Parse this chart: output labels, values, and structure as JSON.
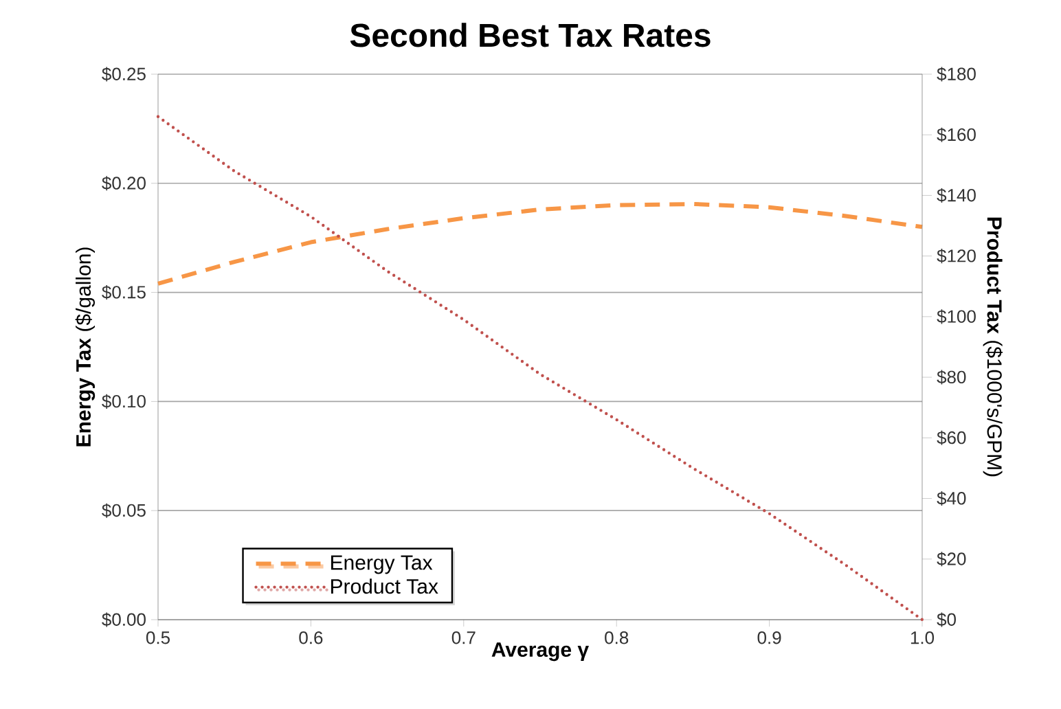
{
  "chart_data": {
    "type": "line",
    "title": "Second Best Tax Rates",
    "xlabel": "Average γ",
    "ylabel": "**Energy Tax** ($/gallon)",
    "y2label": "**Product Tax** ($1000's/GPM)",
    "xlim": [
      0.5,
      1.0
    ],
    "ylim": [
      0,
      0.25
    ],
    "y2lim": [
      0,
      180
    ],
    "xticks": [
      {
        "value": 0.5,
        "label": "0.5"
      },
      {
        "value": 0.6,
        "label": "0.6"
      },
      {
        "value": 0.7,
        "label": "0.7"
      },
      {
        "value": 0.8,
        "label": "0.8"
      },
      {
        "value": 0.9,
        "label": "0.9"
      },
      {
        "value": 1.0,
        "label": "1.0"
      }
    ],
    "yticks": [
      {
        "value": 0,
        "label": "$0.00"
      },
      {
        "value": 0.05,
        "label": "$0.05"
      },
      {
        "value": 0.1,
        "label": "$0.10"
      },
      {
        "value": 0.15,
        "label": "$0.15"
      },
      {
        "value": 0.2,
        "label": "$0.20"
      },
      {
        "value": 0.25,
        "label": "$0.25"
      }
    ],
    "y2ticks": [
      {
        "value": 0,
        "label": "$0"
      },
      {
        "value": 20,
        "label": "$20"
      },
      {
        "value": 40,
        "label": "$40"
      },
      {
        "value": 60,
        "label": "$60"
      },
      {
        "value": 80,
        "label": "$80"
      },
      {
        "value": 100,
        "label": "$100"
      },
      {
        "value": 120,
        "label": "$120"
      },
      {
        "value": 140,
        "label": "$140"
      },
      {
        "value": 160,
        "label": "$160"
      },
      {
        "value": 180,
        "label": "$180"
      }
    ],
    "x": [
      0.5,
      0.55,
      0.6,
      0.65,
      0.7,
      0.75,
      0.8,
      0.85,
      0.9,
      0.95,
      1.0
    ],
    "series": [
      {
        "name": "Energy Tax",
        "color": "#f79646",
        "line_style": "dashed",
        "values": [
          0.154,
          0.164,
          0.173,
          0.179,
          0.184,
          0.188,
          0.19,
          0.1905,
          0.189,
          0.185,
          0.18
        ]
      },
      {
        "name": "Product Tax",
        "color": "#c0504d",
        "line_style": "dotted",
        "axis": "y2",
        "values": [
          166,
          148,
          133,
          115,
          99,
          81,
          66,
          50,
          35,
          18,
          0
        ]
      }
    ],
    "grid": "y",
    "legend": "bottom left"
  }
}
